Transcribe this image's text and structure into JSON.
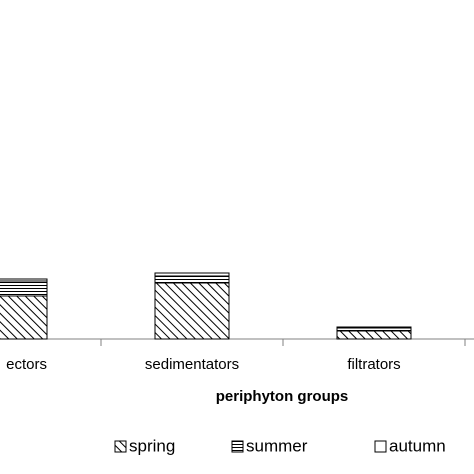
{
  "chart_data": {
    "type": "stacked_bar",
    "x_label": "periphyton groups",
    "categories": [
      "ectors",
      "sedimentators",
      "filtrators"
    ],
    "series": [
      {
        "name": "spring",
        "pattern": "diagonal",
        "values": [
          43,
          56,
          8
        ]
      },
      {
        "name": "summer",
        "pattern": "horizontal",
        "values": [
          15,
          7,
          3
        ]
      },
      {
        "name": "autumn",
        "pattern": "none",
        "values": [
          2,
          3,
          1
        ]
      }
    ],
    "ylim": [
      0,
      339
    ]
  }
}
